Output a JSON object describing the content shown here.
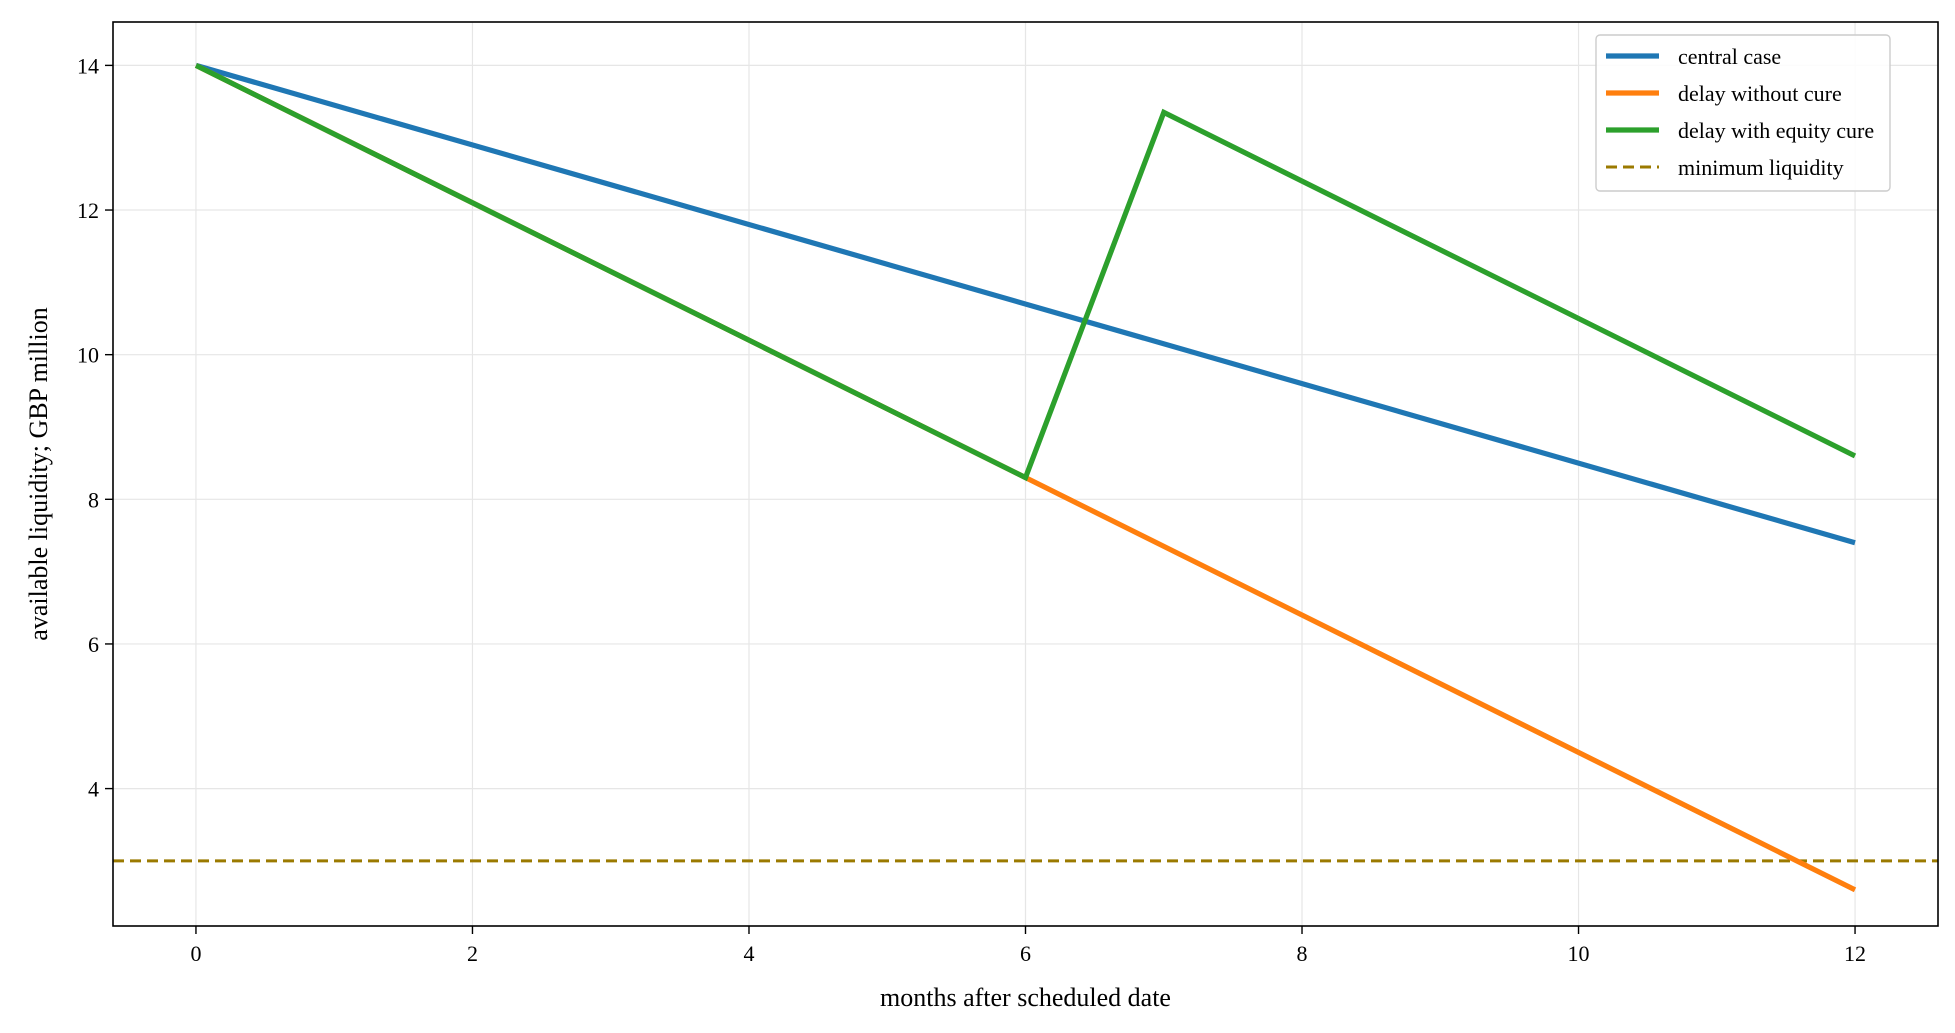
{
  "chart_data": {
    "type": "line",
    "title": "",
    "xlabel": "months after scheduled date",
    "ylabel": "available liquidity; GBP million",
    "xlim": [
      -0.6,
      12.6
    ],
    "ylim": [
      2.1,
      14.6
    ],
    "x_ticks": [
      0,
      2,
      4,
      6,
      8,
      10,
      12
    ],
    "y_ticks": [
      4,
      6,
      8,
      10,
      12,
      14
    ],
    "grid": true,
    "legend_position": "top-right",
    "series": [
      {
        "name": "central case",
        "color": "#1f77b4",
        "style": "solid",
        "x": [
          0,
          12
        ],
        "y": [
          14.0,
          7.4
        ]
      },
      {
        "name": "delay without cure",
        "color": "#ff7f0e",
        "style": "solid",
        "x": [
          0,
          6,
          12
        ],
        "y": [
          14.0,
          8.3,
          2.6
        ]
      },
      {
        "name": "delay with equity cure",
        "color": "#2ca02c",
        "style": "solid",
        "x": [
          0,
          6,
          7,
          12
        ],
        "y": [
          14.0,
          8.3,
          13.35,
          8.6
        ]
      },
      {
        "name": "minimum liquidity",
        "color": "#9b7a00",
        "style": "dashed",
        "horizontal": true,
        "y_value": 3.0
      }
    ]
  }
}
